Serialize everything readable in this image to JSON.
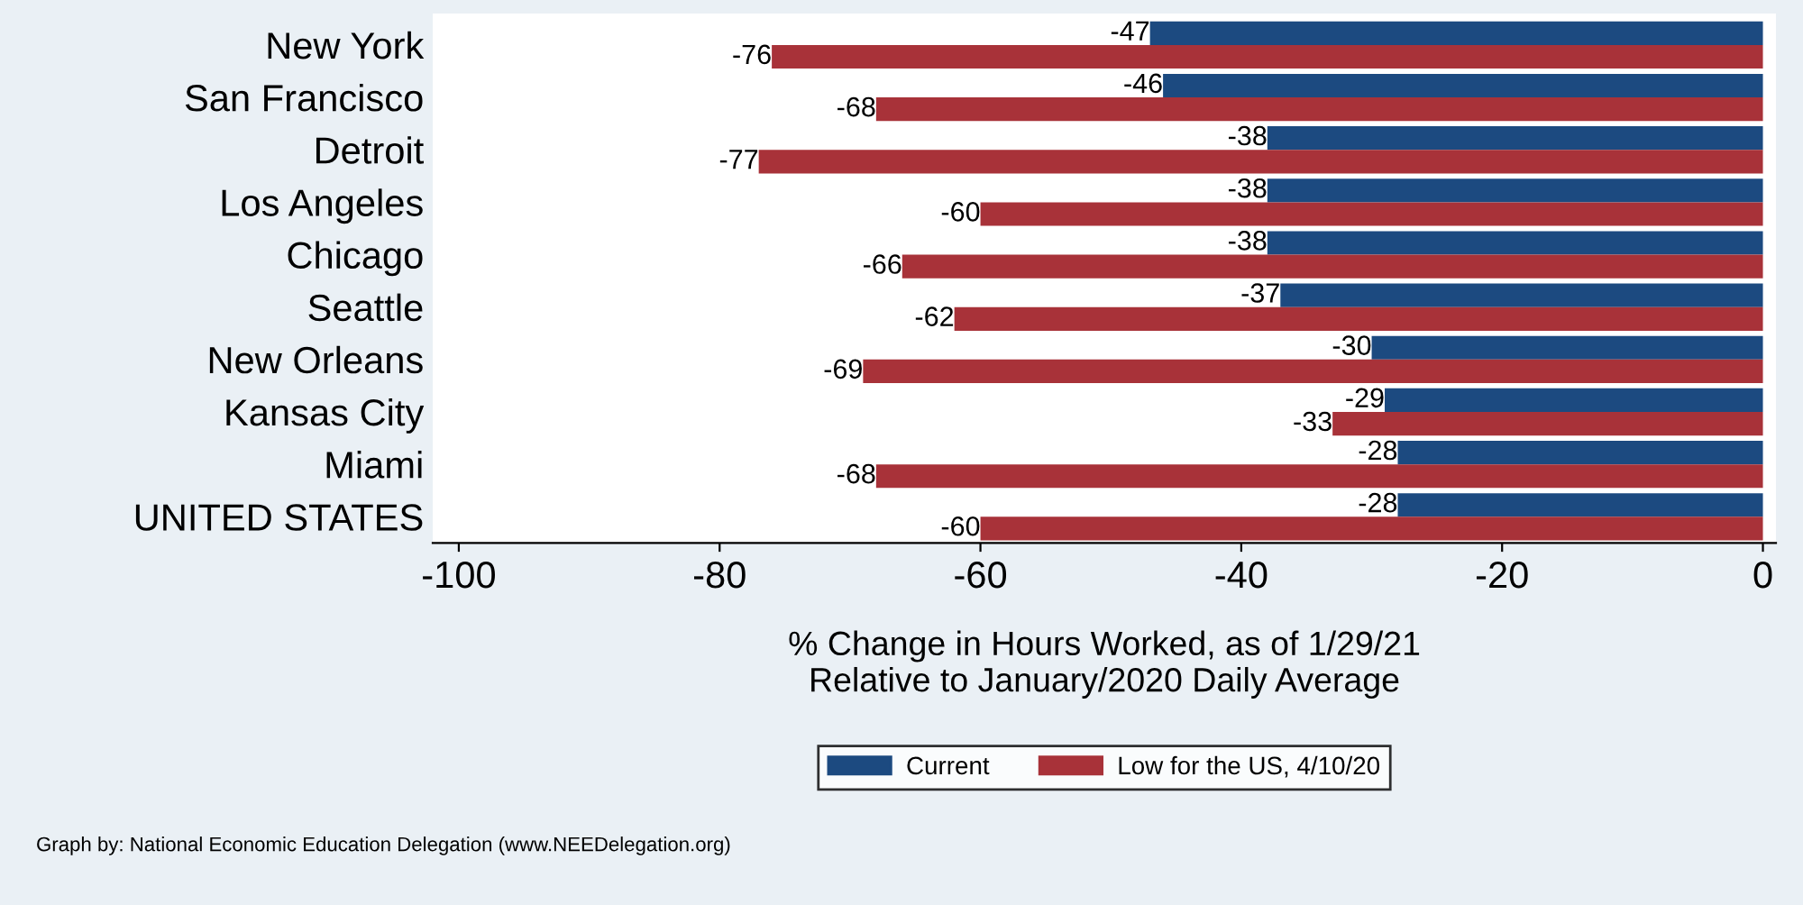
{
  "chart_data": {
    "type": "bar",
    "orientation": "horizontal",
    "categories": [
      "New York",
      "San Francisco",
      "Detroit",
      "Los Angeles",
      "Chicago",
      "Seattle",
      "New Orleans",
      "Kansas City",
      "Miami",
      "UNITED STATES"
    ],
    "series": [
      {
        "name": "Current",
        "color": "#1c4a80",
        "values": [
          -47,
          -46,
          -38,
          -38,
          -38,
          -37,
          -30,
          -29,
          -28,
          -28
        ]
      },
      {
        "name": "Low for the US, 4/10/20",
        "color": "#a83239",
        "values": [
          -76,
          -68,
          -77,
          -60,
          -66,
          -62,
          -69,
          -33,
          -68,
          -60
        ]
      }
    ],
    "xlim": [
      -102,
      1
    ],
    "xticks": [
      -100,
      -80,
      -60,
      -40,
      -20,
      0
    ],
    "xlabel": "% Change in Hours Worked, as of 1/29/21\nRelative to January/2020 Daily Average",
    "data_labels": true,
    "grid": false,
    "legend": "bottom",
    "annotations": [
      "Graph by: National Economic Education Delegation (www.NEEDelegation.org)"
    ]
  }
}
